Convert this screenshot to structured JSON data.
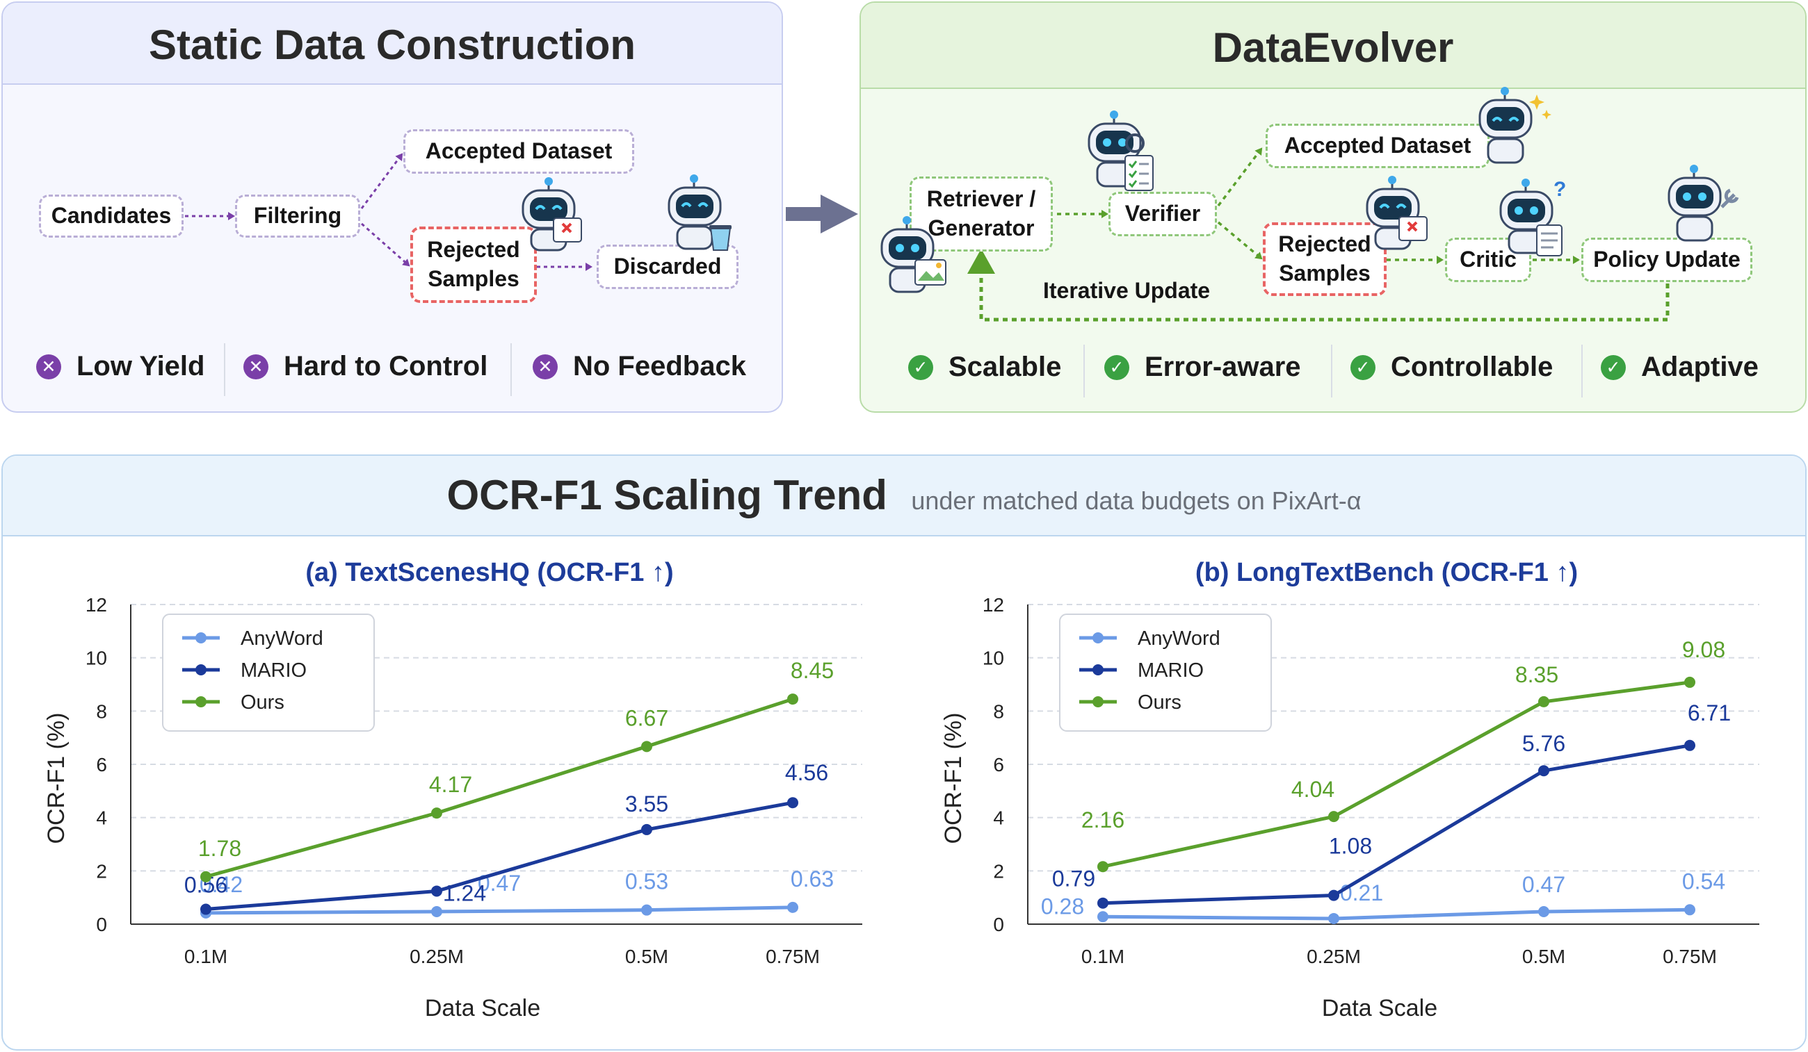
{
  "left_panel": {
    "title": "Static Data Construction",
    "nodes": {
      "candidates": "Candidates",
      "filtering": "Filtering",
      "accepted": "Accepted Dataset",
      "rejected_line1": "Rejected",
      "rejected_line2": "Samples",
      "discarded": "Discarded"
    },
    "features": [
      "Low Yield",
      "Hard to Control",
      "No Feedback"
    ]
  },
  "right_panel": {
    "title": "DataEvolver",
    "nodes": {
      "retriever_line1": "Retriever /",
      "retriever_line2": "Generator",
      "verifier": "Verifier",
      "accepted": "Accepted Dataset",
      "rejected_line1": "Rejected",
      "rejected_line2": "Samples",
      "critic": "Critic",
      "policy": "Policy Update"
    },
    "loop_label": "Iterative Update",
    "features": [
      "Scalable",
      "Error-aware",
      "Controllable",
      "Adaptive"
    ]
  },
  "bottom_panel": {
    "title": "OCR-F1 Scaling Trend",
    "subtitle": "under matched data budgets on PixArt-α"
  },
  "colors": {
    "anyword": "#6b9ae6",
    "mario": "#1b3a9a",
    "ours": "#5aa02c",
    "title_blue": "#1d3c9a",
    "purple": "#7a3fa8",
    "green_check": "#3aa142"
  },
  "chart_data": [
    {
      "type": "line",
      "title": "(a) TextScenesHQ (OCR-F1 ↑)",
      "xlabel": "Data Scale",
      "ylabel": "OCR-F1 (%)",
      "categories": [
        "0.1M",
        "0.25M",
        "0.5M",
        "0.75M"
      ],
      "x": [
        0.1,
        0.25,
        0.5,
        0.75
      ],
      "ylim": [
        0,
        12
      ],
      "yticks": [
        "0",
        "2",
        "4",
        "6",
        "8",
        "10",
        "12"
      ],
      "grid": true,
      "legend": "top-left",
      "series": [
        {
          "name": "AnyWord",
          "values": [
            0.42,
            0.47,
            0.53,
            0.63
          ],
          "labels": [
            "0.42",
            "0.47",
            "0.53",
            "0.63"
          ]
        },
        {
          "name": "MARIO",
          "values": [
            0.56,
            1.24,
            3.55,
            4.56
          ],
          "labels": [
            "0.56",
            "1.24",
            "3.55",
            "4.56"
          ]
        },
        {
          "name": "Ours",
          "values": [
            1.78,
            4.17,
            6.67,
            8.45
          ],
          "labels": [
            "1.78",
            "4.17",
            "6.67",
            "8.45"
          ]
        }
      ]
    },
    {
      "type": "line",
      "title": "(b) LongTextBench (OCR-F1 ↑)",
      "xlabel": "Data Scale",
      "ylabel": "OCR-F1 (%)",
      "categories": [
        "0.1M",
        "0.25M",
        "0.5M",
        "0.75M"
      ],
      "x": [
        0.1,
        0.25,
        0.5,
        0.75
      ],
      "ylim": [
        0,
        12
      ],
      "yticks": [
        "0",
        "2",
        "4",
        "6",
        "8",
        "10",
        "12"
      ],
      "grid": true,
      "legend": "top-left",
      "series": [
        {
          "name": "AnyWord",
          "values": [
            0.28,
            0.21,
            0.47,
            0.54
          ],
          "labels": [
            "0.28",
            "0.21",
            "0.47",
            "0.54"
          ]
        },
        {
          "name": "MARIO",
          "values": [
            0.79,
            1.08,
            5.76,
            6.71
          ],
          "labels": [
            "0.79",
            "1.08",
            "5.76",
            "6.71"
          ]
        },
        {
          "name": "Ours",
          "values": [
            2.16,
            4.04,
            8.35,
            9.08
          ],
          "labels": [
            "2.16",
            "4.04",
            "8.35",
            "9.08"
          ]
        }
      ]
    }
  ]
}
